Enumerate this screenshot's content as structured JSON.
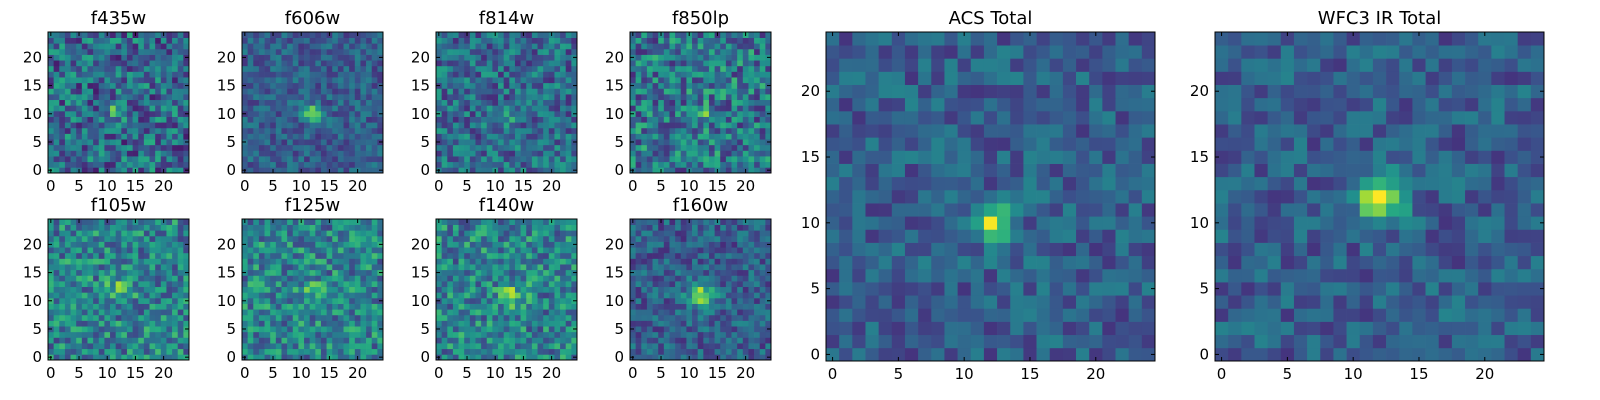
{
  "figure": {
    "panels": [
      {
        "id": "f435w",
        "title": "f435w",
        "kind": "small",
        "seed": 11,
        "peak": [
          12,
          11
        ],
        "peakAmp": 0.35,
        "sigma": 1.0,
        "noise": 0.55,
        "base": 0.35
      },
      {
        "id": "f606w",
        "title": "f606w",
        "kind": "small",
        "seed": 23,
        "peak": [
          12,
          10
        ],
        "peakAmp": 0.55,
        "sigma": 1.1,
        "noise": 0.3,
        "base": 0.3
      },
      {
        "id": "f814w",
        "title": "f814w",
        "kind": "small",
        "seed": 37,
        "peak": [
          12,
          10
        ],
        "peakAmp": 0.3,
        "sigma": 1.0,
        "noise": 0.45,
        "base": 0.35
      },
      {
        "id": "f850lp",
        "title": "f850lp",
        "kind": "small",
        "seed": 41,
        "peak": [
          13,
          10
        ],
        "peakAmp": 0.2,
        "sigma": 1.2,
        "noise": 0.55,
        "base": 0.4
      },
      {
        "id": "f105w",
        "title": "f105w",
        "kind": "small",
        "seed": 53,
        "peak": [
          12,
          12
        ],
        "peakAmp": 0.25,
        "sigma": 1.5,
        "noise": 0.5,
        "base": 0.45
      },
      {
        "id": "f125w",
        "title": "f125w",
        "kind": "small",
        "seed": 67,
        "peak": [
          12,
          11
        ],
        "peakAmp": 0.2,
        "sigma": 1.6,
        "noise": 0.5,
        "base": 0.45
      },
      {
        "id": "f140w",
        "title": "f140w",
        "kind": "small",
        "seed": 71,
        "peak": [
          13,
          11
        ],
        "peakAmp": 0.3,
        "sigma": 1.5,
        "noise": 0.5,
        "base": 0.45
      },
      {
        "id": "f160w",
        "title": "f160w",
        "kind": "small",
        "seed": 83,
        "peak": [
          12,
          11
        ],
        "peakAmp": 0.55,
        "sigma": 1.6,
        "noise": 0.35,
        "base": 0.3
      },
      {
        "id": "acs",
        "title": "ACS Total",
        "kind": "large",
        "seed": 97,
        "peak": [
          12,
          10
        ],
        "peakAmp": 0.65,
        "sigma": 1.0,
        "noise": 0.3,
        "base": 0.3
      },
      {
        "id": "wfc3",
        "title": "WFC3 IR Total",
        "kind": "large",
        "seed": 109,
        "peak": [
          12,
          12
        ],
        "peakAmp": 0.65,
        "sigma": 1.3,
        "noise": 0.3,
        "base": 0.3
      }
    ]
  },
  "chart_data": [
    {
      "type": "heatmap",
      "title": "f435w",
      "xlim": [
        -0.5,
        24.5
      ],
      "ylim": [
        -0.5,
        24.5
      ],
      "xticks": [
        0,
        5,
        10,
        15,
        20
      ],
      "yticks": [
        0,
        5,
        10,
        15,
        20
      ],
      "colormap": "viridis",
      "grid": false
    },
    {
      "type": "heatmap",
      "title": "f606w",
      "xlim": [
        -0.5,
        24.5
      ],
      "ylim": [
        -0.5,
        24.5
      ],
      "xticks": [
        0,
        5,
        10,
        15,
        20
      ],
      "yticks": [
        0,
        5,
        10,
        15,
        20
      ],
      "colormap": "viridis",
      "grid": false
    },
    {
      "type": "heatmap",
      "title": "f814w",
      "xlim": [
        -0.5,
        24.5
      ],
      "ylim": [
        -0.5,
        24.5
      ],
      "xticks": [
        0,
        5,
        10,
        15,
        20
      ],
      "yticks": [
        0,
        5,
        10,
        15,
        20
      ],
      "colormap": "viridis",
      "grid": false
    },
    {
      "type": "heatmap",
      "title": "f850lp",
      "xlim": [
        -0.5,
        24.5
      ],
      "ylim": [
        -0.5,
        24.5
      ],
      "xticks": [
        0,
        5,
        10,
        15,
        20
      ],
      "yticks": [
        0,
        5,
        10,
        15,
        20
      ],
      "colormap": "viridis",
      "grid": false
    },
    {
      "type": "heatmap",
      "title": "f105w",
      "xlim": [
        -0.5,
        24.5
      ],
      "ylim": [
        -0.5,
        24.5
      ],
      "xticks": [
        0,
        5,
        10,
        15,
        20
      ],
      "yticks": [
        0,
        5,
        10,
        15,
        20
      ],
      "colormap": "viridis",
      "grid": false
    },
    {
      "type": "heatmap",
      "title": "f125w",
      "xlim": [
        -0.5,
        24.5
      ],
      "ylim": [
        -0.5,
        24.5
      ],
      "xticks": [
        0,
        5,
        10,
        15,
        20
      ],
      "yticks": [
        0,
        5,
        10,
        15,
        20
      ],
      "colormap": "viridis",
      "grid": false
    },
    {
      "type": "heatmap",
      "title": "f140w",
      "xlim": [
        -0.5,
        24.5
      ],
      "ylim": [
        -0.5,
        24.5
      ],
      "xticks": [
        0,
        5,
        10,
        15,
        20
      ],
      "yticks": [
        0,
        5,
        10,
        15,
        20
      ],
      "colormap": "viridis",
      "grid": false
    },
    {
      "type": "heatmap",
      "title": "f160w",
      "xlim": [
        -0.5,
        24.5
      ],
      "ylim": [
        -0.5,
        24.5
      ],
      "xticks": [
        0,
        5,
        10,
        15,
        20
      ],
      "yticks": [
        0,
        5,
        10,
        15,
        20
      ],
      "colormap": "viridis",
      "grid": false
    },
    {
      "type": "heatmap",
      "title": "ACS Total",
      "xlim": [
        -0.5,
        24.5
      ],
      "ylim": [
        -0.5,
        24.5
      ],
      "xticks": [
        0,
        5,
        10,
        15,
        20
      ],
      "yticks": [
        0,
        5,
        10,
        15,
        20
      ],
      "colormap": "viridis",
      "grid": false
    },
    {
      "type": "heatmap",
      "title": "WFC3 IR Total",
      "xlim": [
        -0.5,
        24.5
      ],
      "ylim": [
        -0.5,
        24.5
      ],
      "xticks": [
        0,
        5,
        10,
        15,
        20
      ],
      "yticks": [
        0,
        5,
        10,
        15,
        20
      ],
      "colormap": "viridis",
      "grid": false
    }
  ]
}
